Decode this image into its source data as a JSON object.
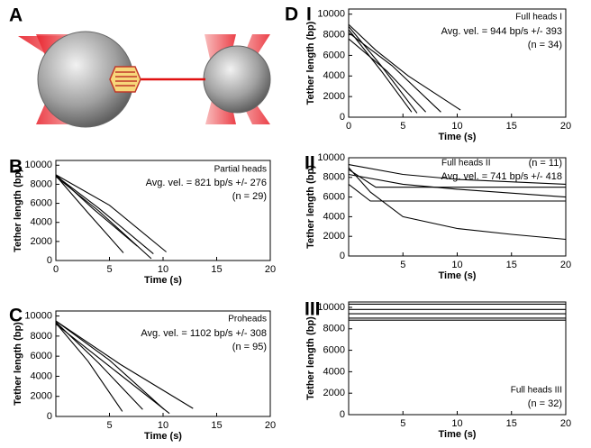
{
  "illustration": {
    "label": "A"
  },
  "chart_data": [
    {
      "type": "line",
      "panel_labels": [
        "B"
      ],
      "annotations": [
        "Partial heads",
        "Avg. vel. = 821 bp/s +/- 276",
        "(n = 29)"
      ],
      "xlabel": "Time (s)",
      "ylabel": "Tether length (bp)",
      "xlim": [
        0,
        20
      ],
      "ylim": [
        0,
        10500
      ],
      "xticks": [
        0,
        5,
        10,
        15,
        20
      ],
      "yticks": [
        0,
        2000,
        4000,
        6000,
        8000,
        10000
      ],
      "color": "#000000",
      "series": [
        {
          "x": [
            0,
            3,
            6.3
          ],
          "values": [
            8900,
            5000,
            800
          ]
        },
        {
          "x": [
            0,
            3.5,
            7.6
          ],
          "values": [
            9000,
            5400,
            1500
          ]
        },
        {
          "x": [
            0,
            4,
            8.9
          ],
          "values": [
            8800,
            5200,
            200
          ]
        },
        {
          "x": [
            0,
            4,
            9.1
          ],
          "values": [
            8900,
            5500,
            700
          ]
        },
        {
          "x": [
            0,
            5,
            10.3
          ],
          "values": [
            9000,
            5800,
            900
          ]
        }
      ]
    },
    {
      "type": "line",
      "panel_labels": [
        "C"
      ],
      "annotations": [
        "Proheads",
        "Avg. vel. = 1102 bp/s +/- 308",
        "(n = 95)"
      ],
      "xlabel": "Time (s)",
      "ylabel": "Tether length (bp)",
      "xlim": [
        0,
        20
      ],
      "ylim": [
        0,
        10500
      ],
      "xticks": [
        5,
        10,
        15,
        20
      ],
      "yticks": [
        0,
        2000,
        4000,
        6000,
        8000,
        10000
      ],
      "color": "#000000",
      "series": [
        {
          "x": [
            0,
            3,
            6.2
          ],
          "values": [
            9300,
            5500,
            500
          ]
        },
        {
          "x": [
            0,
            4,
            8.1
          ],
          "values": [
            9400,
            5300,
            700
          ]
        },
        {
          "x": [
            0,
            5,
            10.1
          ],
          "values": [
            9500,
            5600,
            700
          ]
        },
        {
          "x": [
            0,
            5,
            10.6
          ],
          "values": [
            9200,
            5000,
            300
          ]
        },
        {
          "x": [
            0,
            6,
            12.8
          ],
          "values": [
            9500,
            5200,
            800
          ]
        }
      ]
    },
    {
      "type": "line",
      "panel_labels": [
        "D",
        "I"
      ],
      "annotations": [
        "Full heads I",
        "Avg. vel. = 944 bp/s +/- 393",
        "(n = 34)"
      ],
      "xlabel": "Time (s)",
      "ylabel": "Tether length (bp)",
      "xlim": [
        0,
        20
      ],
      "ylim": [
        0,
        10500
      ],
      "xticks": [
        0,
        5,
        10,
        15,
        20
      ],
      "yticks": [
        0,
        2000,
        4000,
        6000,
        8000,
        10000
      ],
      "color": "#000000",
      "series": [
        {
          "x": [
            0,
            3,
            5.8
          ],
          "values": [
            8500,
            4500,
            500
          ]
        },
        {
          "x": [
            0,
            3,
            6.3
          ],
          "values": [
            8800,
            5000,
            400
          ]
        },
        {
          "x": [
            0,
            3.5,
            7.1
          ],
          "values": [
            7600,
            4500,
            500
          ]
        },
        {
          "x": [
            0,
            4,
            8.5
          ],
          "values": [
            8200,
            5000,
            500
          ]
        },
        {
          "x": [
            0,
            2.5,
            5.5,
            10.3
          ],
          "values": [
            9000,
            6500,
            4000,
            700
          ]
        }
      ]
    },
    {
      "type": "line",
      "panel_labels": [
        "II"
      ],
      "annotations": [
        "Full heads II",
        "(n = 11)",
        "Avg. vel. = 741 bp/s +/- 418"
      ],
      "xlabel": "Time (s)",
      "ylabel": "Tether length (bp)",
      "xlim": [
        0,
        20
      ],
      "ylim": [
        0,
        10000
      ],
      "xticks": [
        5,
        10,
        15,
        20
      ],
      "yticks": [
        0,
        2000,
        4000,
        6000,
        8000,
        10000
      ],
      "color": "#000000",
      "series": [
        {
          "x": [
            0,
            5,
            10,
            20
          ],
          "values": [
            9300,
            8300,
            7800,
            7300
          ]
        },
        {
          "x": [
            0,
            2.5,
            10,
            20
          ],
          "values": [
            8800,
            7000,
            7000,
            7000
          ]
        },
        {
          "x": [
            0,
            5,
            10,
            20
          ],
          "values": [
            8300,
            7300,
            6800,
            6000
          ]
        },
        {
          "x": [
            0,
            2,
            20
          ],
          "values": [
            7300,
            5600,
            5600
          ]
        },
        {
          "x": [
            0,
            2,
            5,
            10,
            15,
            20
          ],
          "values": [
            9000,
            6500,
            4000,
            2800,
            2200,
            1700
          ]
        }
      ]
    },
    {
      "type": "line",
      "panel_labels": [
        "III"
      ],
      "annotations": [
        "Full heads III",
        "(n = 32)"
      ],
      "xlabel": "Time (s)",
      "ylabel": "Tether length (bp)",
      "xlim": [
        0,
        20
      ],
      "ylim": [
        0,
        10500
      ],
      "xticks": [
        5,
        10,
        15,
        20
      ],
      "yticks": [
        0,
        2000,
        4000,
        6000,
        8000,
        10000
      ],
      "color": "#000000",
      "series": [
        {
          "x": [
            0,
            20
          ],
          "values": [
            10300,
            10300
          ]
        },
        {
          "x": [
            0,
            20
          ],
          "values": [
            9800,
            9800
          ]
        },
        {
          "x": [
            0,
            20
          ],
          "values": [
            9400,
            9400
          ]
        },
        {
          "x": [
            0,
            20
          ],
          "values": [
            9000,
            9000
          ]
        },
        {
          "x": [
            0,
            20
          ],
          "values": [
            8800,
            8800
          ]
        }
      ]
    }
  ]
}
